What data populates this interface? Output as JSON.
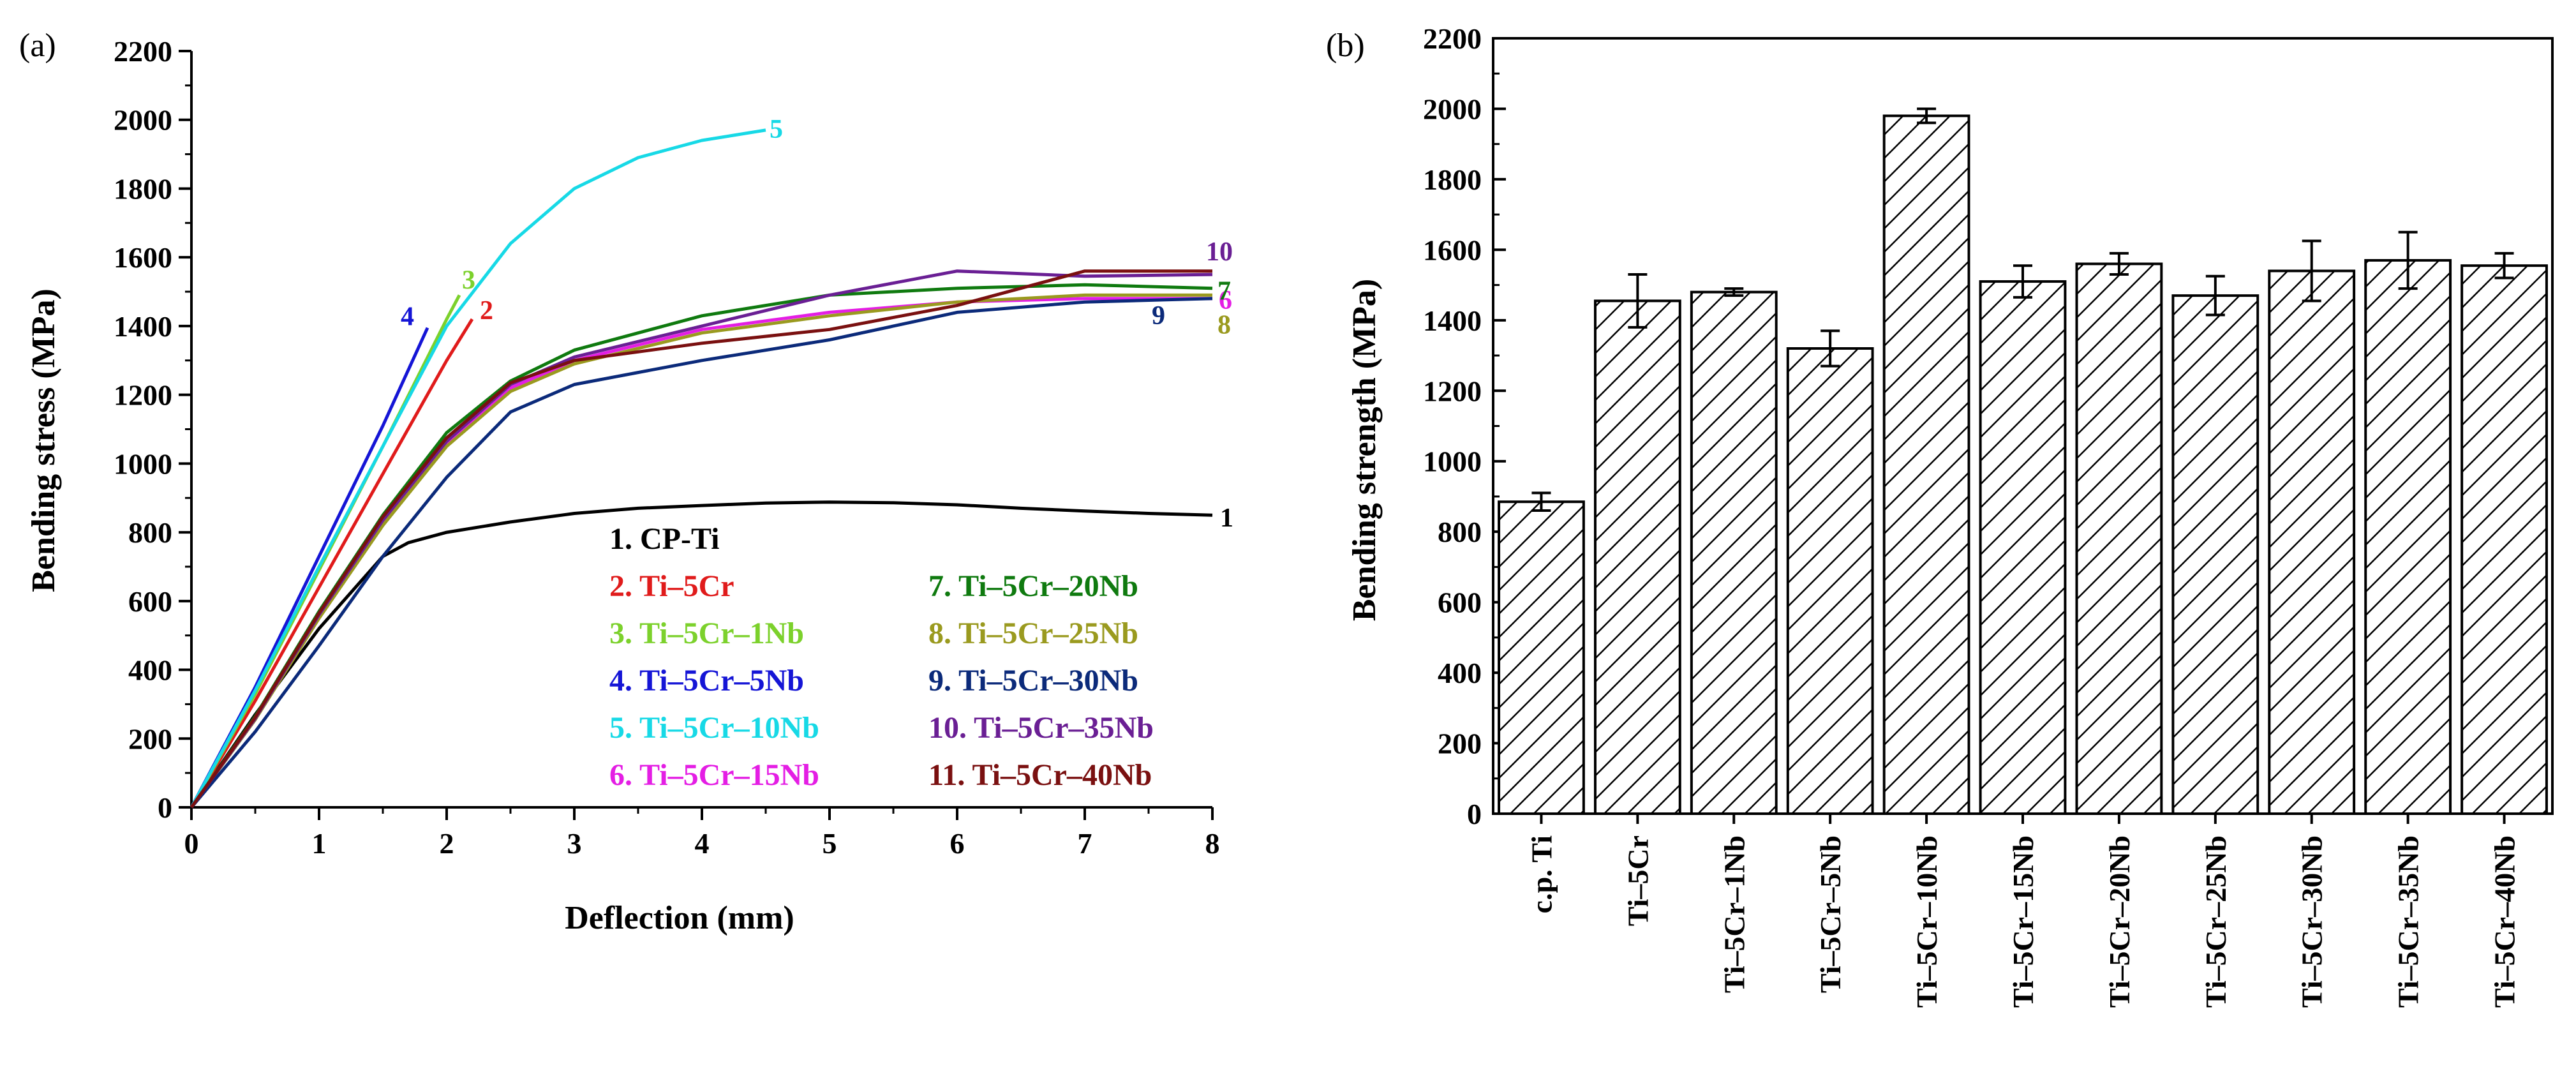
{
  "chart_data": [
    {
      "panel_label": "(a)",
      "type": "line",
      "xlabel": "Deflection (mm)",
      "ylabel": "Bending stress (MPa)",
      "xlim": [
        0,
        8
      ],
      "ylim": [
        0,
        2200
      ],
      "xticks": [
        0,
        1,
        2,
        3,
        4,
        5,
        6,
        7,
        8
      ],
      "yticks": [
        0,
        200,
        400,
        600,
        800,
        1000,
        1200,
        1400,
        1600,
        1800,
        2000,
        2200
      ],
      "series": [
        {
          "id": "1",
          "name": "1. CP-Ti",
          "color": "#000000",
          "x": [
            0,
            0.5,
            1.0,
            1.5,
            1.7,
            2.0,
            2.5,
            3.0,
            3.5,
            4.0,
            4.5,
            5.0,
            5.5,
            6.0,
            6.5,
            7.0,
            7.5,
            8.0
          ],
          "y": [
            0,
            270,
            520,
            730,
            770,
            800,
            830,
            855,
            870,
            878,
            885,
            888,
            886,
            880,
            870,
            862,
            855,
            850
          ],
          "end_label": "1"
        },
        {
          "id": "2",
          "name": "2. Ti–5Cr",
          "color": "#e01b1b",
          "x": [
            0,
            0.5,
            1.0,
            1.5,
            2.0,
            2.2
          ],
          "y": [
            0,
            310,
            640,
            970,
            1300,
            1420
          ],
          "end_label": "2"
        },
        {
          "id": "3",
          "name": "3. Ti–5Cr–1Nb",
          "color": "#7cd12c",
          "x": [
            0,
            0.5,
            1.0,
            1.5,
            2.0,
            2.1
          ],
          "y": [
            0,
            330,
            690,
            1050,
            1420,
            1490
          ],
          "end_label": "3"
        },
        {
          "id": "4",
          "name": "4. Ti–5Cr–5Nb",
          "color": "#1515d6",
          "x": [
            0,
            0.5,
            1.0,
            1.5,
            1.85
          ],
          "y": [
            0,
            350,
            730,
            1110,
            1395
          ],
          "end_label": "4"
        },
        {
          "id": "5",
          "name": "5. Ti–5Cr–10Nb",
          "color": "#17d9e6",
          "x": [
            0,
            0.5,
            1.0,
            1.5,
            2.0,
            2.5,
            3.0,
            3.5,
            4.0,
            4.5
          ],
          "y": [
            0,
            340,
            700,
            1050,
            1400,
            1640,
            1800,
            1890,
            1940,
            1970
          ],
          "end_label": "5"
        },
        {
          "id": "6",
          "name": "6. Ti–5Cr–15Nb",
          "color": "#e41ee4",
          "x": [
            0,
            0.5,
            1.0,
            1.5,
            2.0,
            2.5,
            3.0,
            4.0,
            5.0,
            6.0,
            7.0,
            8.0
          ],
          "y": [
            0,
            260,
            560,
            830,
            1060,
            1220,
            1300,
            1390,
            1440,
            1470,
            1480,
            1480
          ],
          "end_label": "6"
        },
        {
          "id": "7",
          "name": "7. Ti–5Cr–20Nb",
          "color": "#0f7a0f",
          "x": [
            0,
            0.5,
            1.0,
            1.5,
            2.0,
            2.5,
            3.0,
            4.0,
            5.0,
            6.0,
            7.0,
            8.0
          ],
          "y": [
            0,
            265,
            570,
            850,
            1090,
            1240,
            1330,
            1430,
            1490,
            1510,
            1520,
            1510
          ],
          "end_label": "7"
        },
        {
          "id": "8",
          "name": "8. Ti–5Cr–25Nb",
          "color": "#9a9a1f",
          "x": [
            0,
            0.5,
            1.0,
            1.5,
            2.0,
            2.5,
            3.0,
            4.0,
            5.0,
            6.0,
            7.0,
            8.0
          ],
          "y": [
            0,
            255,
            550,
            820,
            1050,
            1210,
            1290,
            1380,
            1430,
            1470,
            1490,
            1490
          ],
          "end_label": "8"
        },
        {
          "id": "9",
          "name": "9. Ti–5Cr–30Nb",
          "color": "#0b2a7a",
          "x": [
            0,
            0.5,
            1.0,
            1.5,
            2.0,
            2.5,
            3.0,
            4.0,
            5.0,
            6.0,
            7.0,
            8.0
          ],
          "y": [
            0,
            220,
            470,
            730,
            960,
            1150,
            1230,
            1300,
            1360,
            1440,
            1470,
            1480
          ],
          "end_label": "9"
        },
        {
          "id": "10",
          "name": "10. Ti–5Cr–35Nb",
          "color": "#6a1f94",
          "x": [
            0,
            0.5,
            1.0,
            1.5,
            2.0,
            2.5,
            3.0,
            4.0,
            5.0,
            6.0,
            7.0,
            8.0
          ],
          "y": [
            0,
            258,
            560,
            835,
            1065,
            1230,
            1310,
            1400,
            1490,
            1560,
            1545,
            1550
          ],
          "end_label": "10"
        },
        {
          "id": "11",
          "name": "11. Ti–5Cr–40Nb",
          "color": "#7a1010",
          "x": [
            0,
            0.5,
            1.0,
            1.5,
            2.0,
            2.5,
            3.0,
            4.0,
            5.0,
            6.0,
            7.0,
            8.0
          ],
          "y": [
            0,
            262,
            565,
            845,
            1075,
            1235,
            1300,
            1350,
            1390,
            1460,
            1560,
            1560
          ],
          "end_label": ""
        }
      ]
    },
    {
      "panel_label": "(b)",
      "type": "bar",
      "ylabel": "Bending strength (MPa)",
      "ylim": [
        0,
        2200
      ],
      "yticks": [
        0,
        200,
        400,
        600,
        800,
        1000,
        1200,
        1400,
        1600,
        1800,
        2000,
        2200
      ],
      "categories": [
        "c.p. Ti",
        "Ti–5Cr",
        "Ti–5Cr–1Nb",
        "Ti–5Cr–5Nb",
        "Ti–5Cr–10Nb",
        "Ti–5Cr–15Nb",
        "Ti–5Cr–20Nb",
        "Ti–5Cr–25Nb",
        "Ti–5Cr–30Nb",
        "Ti–5Cr–35Nb",
        "Ti–5Cr–40Nb"
      ],
      "values": [
        885,
        1455,
        1480,
        1320,
        1980,
        1510,
        1560,
        1470,
        1540,
        1570,
        1555
      ],
      "errors": [
        25,
        75,
        10,
        50,
        20,
        45,
        30,
        55,
        85,
        80,
        35
      ],
      "pattern": "diagonal hatch"
    }
  ]
}
